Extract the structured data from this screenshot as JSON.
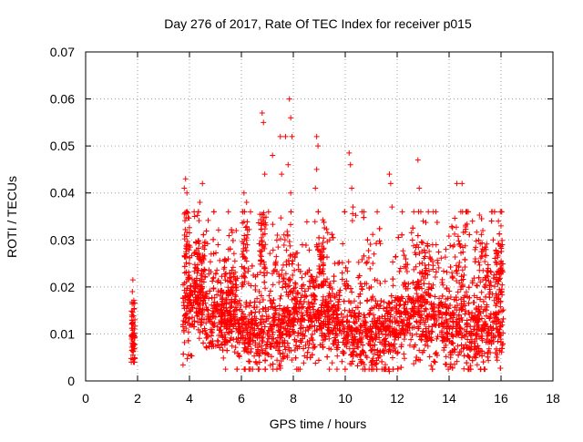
{
  "chart_data": {
    "type": "scatter",
    "title": "Day 276 of 2017, Rate Of TEC Index for receiver p015",
    "xlabel": "GPS time / hours",
    "ylabel": "ROTI / TECUs",
    "xlim": [
      0,
      18
    ],
    "ylim": [
      0,
      0.07
    ],
    "xticks": [
      0,
      2,
      4,
      6,
      8,
      10,
      12,
      14,
      16,
      18
    ],
    "yticks": [
      0,
      0.01,
      0.02,
      0.03,
      0.04,
      0.05,
      0.06,
      0.07
    ],
    "xtick_labels": [
      "0",
      "2",
      "4",
      "6",
      "8",
      "10",
      "12",
      "14",
      "16",
      "18"
    ],
    "ytick_labels": [
      "0",
      "0.01",
      "0.02",
      "0.03",
      "0.04",
      "0.05",
      "0.06",
      "0.07"
    ],
    "grid": true,
    "marker": "+",
    "color": "#ff0000",
    "series": [
      {
        "name": "ROTI",
        "segments": [
          {
            "x_range": [
              1.75,
              1.9
            ],
            "y_min": 0.004,
            "y_max": 0.021
          },
          {
            "x_range": [
              3.75,
              16.1
            ],
            "y_min": 0.0015,
            "y_max": 0.06
          }
        ],
        "points": [
          {
            "x": 1.82,
            "y": 0.0215
          },
          {
            "x": 1.8,
            "y": 0.019
          },
          {
            "x": 1.85,
            "y": 0.0165
          },
          {
            "x": 1.78,
            "y": 0.014
          },
          {
            "x": 1.83,
            "y": 0.012
          },
          {
            "x": 1.8,
            "y": 0.0095
          },
          {
            "x": 1.84,
            "y": 0.008
          },
          {
            "x": 1.78,
            "y": 0.0065
          },
          {
            "x": 1.82,
            "y": 0.0055
          },
          {
            "x": 1.84,
            "y": 0.004
          },
          {
            "x": 3.85,
            "y": 0.043
          },
          {
            "x": 3.8,
            "y": 0.041
          },
          {
            "x": 3.9,
            "y": 0.04
          },
          {
            "x": 4.5,
            "y": 0.042
          },
          {
            "x": 4.4,
            "y": 0.038
          },
          {
            "x": 4.2,
            "y": 0.035
          },
          {
            "x": 5.1,
            "y": 0.029
          },
          {
            "x": 5.5,
            "y": 0.028
          },
          {
            "x": 5.8,
            "y": 0.032
          },
          {
            "x": 6.1,
            "y": 0.04
          },
          {
            "x": 6.2,
            "y": 0.038
          },
          {
            "x": 6.35,
            "y": 0.036
          },
          {
            "x": 6.8,
            "y": 0.057
          },
          {
            "x": 6.85,
            "y": 0.055
          },
          {
            "x": 6.9,
            "y": 0.044
          },
          {
            "x": 7.2,
            "y": 0.048
          },
          {
            "x": 7.5,
            "y": 0.052
          },
          {
            "x": 7.55,
            "y": 0.044
          },
          {
            "x": 7.7,
            "y": 0.052
          },
          {
            "x": 7.85,
            "y": 0.06
          },
          {
            "x": 7.9,
            "y": 0.056
          },
          {
            "x": 7.95,
            "y": 0.052
          },
          {
            "x": 7.8,
            "y": 0.046
          },
          {
            "x": 7.9,
            "y": 0.04
          },
          {
            "x": 8.9,
            "y": 0.052
          },
          {
            "x": 8.95,
            "y": 0.05
          },
          {
            "x": 8.9,
            "y": 0.045
          },
          {
            "x": 8.85,
            "y": 0.041
          },
          {
            "x": 9.4,
            "y": 0.03
          },
          {
            "x": 9.6,
            "y": 0.025
          },
          {
            "x": 10.15,
            "y": 0.0485
          },
          {
            "x": 10.2,
            "y": 0.046
          },
          {
            "x": 10.25,
            "y": 0.041
          },
          {
            "x": 10.3,
            "y": 0.037
          },
          {
            "x": 10.5,
            "y": 0.022
          },
          {
            "x": 11.0,
            "y": 0.02
          },
          {
            "x": 11.7,
            "y": 0.044
          },
          {
            "x": 11.75,
            "y": 0.042
          },
          {
            "x": 11.8,
            "y": 0.037
          },
          {
            "x": 11.7,
            "y": 0.002
          },
          {
            "x": 12.8,
            "y": 0.047
          },
          {
            "x": 12.85,
            "y": 0.041
          },
          {
            "x": 13.0,
            "y": 0.034
          },
          {
            "x": 13.2,
            "y": 0.036
          },
          {
            "x": 13.5,
            "y": 0.029
          },
          {
            "x": 14.3,
            "y": 0.042
          },
          {
            "x": 14.5,
            "y": 0.042
          },
          {
            "x": 14.45,
            "y": 0.036
          },
          {
            "x": 14.9,
            "y": 0.034
          },
          {
            "x": 15.3,
            "y": 0.032
          },
          {
            "x": 15.7,
            "y": 0.03
          },
          {
            "x": 15.9,
            "y": 0.034
          },
          {
            "x": 16.0,
            "y": 0.033
          },
          {
            "x": 16.05,
            "y": 0.029
          }
        ]
      }
    ]
  }
}
